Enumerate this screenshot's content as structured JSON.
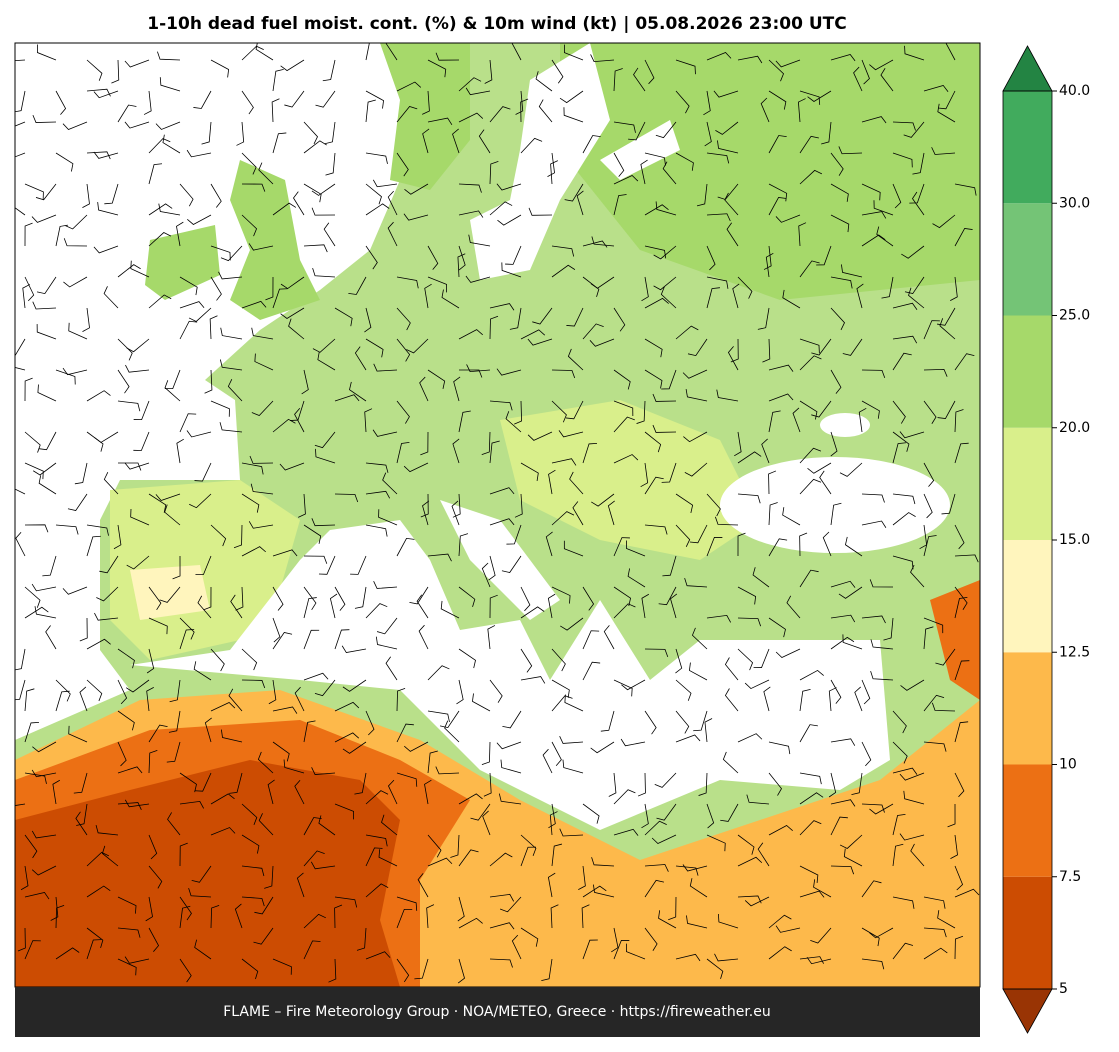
{
  "title": "1-10h dead fuel moist. cont. (%) & 10m wind (kt)  |  05.08.2026 23:00 UTC",
  "footer": "FLAME – Fire Meteorology Group · NOA/METEO, Greece · https://fireweather.eu",
  "colorbar": {
    "ticks": [
      5,
      7.5,
      10,
      12.5,
      {
        "value": 15,
        "label": "15.0"
      },
      {
        "value": 20,
        "label": "20.0"
      },
      {
        "value": 25,
        "label": "25.0"
      },
      {
        "value": 30,
        "label": "30.0"
      },
      {
        "value": 40,
        "label": "40.0"
      }
    ],
    "colors": [
      "#cc4c02",
      "#ec7014",
      "#fdb94b",
      "#fff5bd",
      "#d9ef8b",
      "#a6d96a",
      "#74c476",
      "#41ab5d"
    ],
    "under_color": "#993404",
    "over_color": "#238443"
  }
}
